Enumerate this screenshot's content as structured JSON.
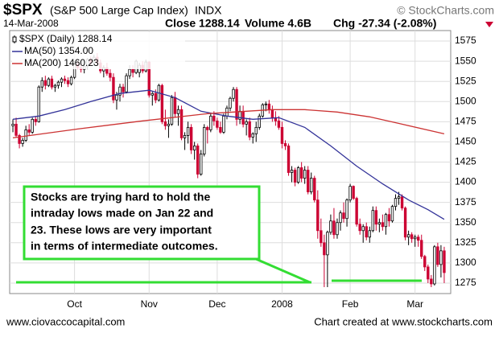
{
  "chart_data": {
    "type": "candlestick",
    "title": "$SPX",
    "subtitle": "(S&P 500 Large Cap Index)",
    "exchange": "INDX",
    "source": "© StockCharts.com",
    "date": "14-Mar-2008",
    "stats": [
      "Close 1288.14",
      "Volume 4.6B",
      "Chg -27.34 (-2.08%)"
    ],
    "price_label": "$SPX (Daily) 1288.14",
    "annotation": [
      "Stocks are trying hard to hold the",
      "intraday lows made on Jan 22 and",
      "23. These lows are very important",
      "in terms of intermediate outcomes."
    ],
    "footer_left": "www.ciovaccocapital.com",
    "footer_right": "Chart created at www.stockcharts.com",
    "up_color": "#000000",
    "down_color": "#cc0033",
    "grid": true,
    "xlim": [
      -1,
      135
    ],
    "xticks": [
      {
        "value": 19,
        "label": "Oct"
      },
      {
        "value": 42,
        "label": "Nov"
      },
      {
        "value": 63,
        "label": "Dec"
      },
      {
        "value": 83,
        "label": "2008"
      },
      {
        "value": 104,
        "label": "Feb"
      },
      {
        "value": 124,
        "label": "Mar"
      }
    ],
    "ylim": [
      1262,
      1588
    ],
    "yticks": [
      1275,
      1300,
      1325,
      1350,
      1375,
      1400,
      1425,
      1450,
      1475,
      1500,
      1525,
      1550,
      1575
    ],
    "candles": [
      [
        1470,
        1478,
        1462,
        1472
      ],
      [
        1472,
        1480,
        1455,
        1458
      ],
      [
        1458,
        1460,
        1442,
        1448
      ],
      [
        1448,
        1455,
        1444,
        1452
      ],
      [
        1452,
        1470,
        1450,
        1465
      ],
      [
        1465,
        1472,
        1458,
        1462
      ],
      [
        1462,
        1480,
        1460,
        1478
      ],
      [
        1478,
        1482,
        1470,
        1475
      ],
      [
        1475,
        1520,
        1474,
        1518
      ],
      [
        1518,
        1530,
        1512,
        1526
      ],
      [
        1526,
        1532,
        1515,
        1520
      ],
      [
        1520,
        1530,
        1518,
        1528
      ],
      [
        1528,
        1532,
        1515,
        1518
      ],
      [
        1518,
        1522,
        1512,
        1520
      ],
      [
        1520,
        1526,
        1516,
        1524
      ],
      [
        1524,
        1530,
        1518,
        1528
      ],
      [
        1528,
        1532,
        1522,
        1526
      ],
      [
        1526,
        1530,
        1518,
        1522
      ],
      [
        1522,
        1532,
        1520,
        1530
      ],
      [
        1530,
        1550,
        1528,
        1546
      ],
      [
        1546,
        1550,
        1540,
        1542
      ],
      [
        1542,
        1548,
        1536,
        1540
      ],
      [
        1540,
        1546,
        1535,
        1544
      ],
      [
        1544,
        1554,
        1540,
        1552
      ],
      [
        1552,
        1556,
        1545,
        1548
      ],
      [
        1548,
        1558,
        1545,
        1555
      ],
      [
        1555,
        1560,
        1545,
        1548
      ],
      [
        1548,
        1552,
        1535,
        1538
      ],
      [
        1538,
        1545,
        1530,
        1542
      ],
      [
        1542,
        1548,
        1532,
        1535
      ],
      [
        1535,
        1540,
        1525,
        1530
      ],
      [
        1530,
        1535,
        1498,
        1502
      ],
      [
        1502,
        1512,
        1490,
        1508
      ],
      [
        1508,
        1522,
        1500,
        1518
      ],
      [
        1518,
        1522,
        1505,
        1512
      ],
      [
        1512,
        1535,
        1510,
        1532
      ],
      [
        1532,
        1545,
        1528,
        1540
      ],
      [
        1540,
        1545,
        1530,
        1536
      ],
      [
        1536,
        1552,
        1534,
        1550
      ],
      [
        1536,
        1548,
        1530,
        1545
      ],
      [
        1545,
        1550,
        1535,
        1538
      ],
      [
        1538,
        1552,
        1536,
        1549
      ],
      [
        1549,
        1550,
        1505,
        1508
      ],
      [
        1508,
        1512,
        1495,
        1510
      ],
      [
        1510,
        1515,
        1498,
        1502
      ],
      [
        1502,
        1522,
        1500,
        1520
      ],
      [
        1520,
        1522,
        1472,
        1475
      ],
      [
        1475,
        1490,
        1465,
        1470
      ],
      [
        1470,
        1478,
        1455,
        1472
      ],
      [
        1472,
        1508,
        1470,
        1505
      ],
      [
        1505,
        1512,
        1480,
        1485
      ],
      [
        1485,
        1495,
        1470,
        1490
      ],
      [
        1490,
        1495,
        1452,
        1455
      ],
      [
        1455,
        1462,
        1440,
        1458
      ],
      [
        1458,
        1475,
        1448,
        1468
      ],
      [
        1468,
        1472,
        1435,
        1440
      ],
      [
        1440,
        1450,
        1428,
        1445
      ],
      [
        1445,
        1448,
        1405,
        1410
      ],
      [
        1410,
        1440,
        1408,
        1435
      ],
      [
        1435,
        1472,
        1432,
        1468
      ],
      [
        1468,
        1470,
        1448,
        1465
      ],
      [
        1465,
        1485,
        1462,
        1482
      ],
      [
        1482,
        1488,
        1470,
        1476
      ],
      [
        1476,
        1480,
        1465,
        1468
      ],
      [
        1468,
        1475,
        1460,
        1462
      ],
      [
        1462,
        1485,
        1460,
        1482
      ],
      [
        1482,
        1495,
        1478,
        1492
      ],
      [
        1492,
        1506,
        1488,
        1504
      ],
      [
        1504,
        1518,
        1500,
        1515
      ],
      [
        1515,
        1518,
        1470,
        1478
      ],
      [
        1478,
        1495,
        1472,
        1488
      ],
      [
        1488,
        1495,
        1468,
        1472
      ],
      [
        1472,
        1478,
        1458,
        1475
      ],
      [
        1475,
        1480,
        1452,
        1456
      ],
      [
        1456,
        1462,
        1448,
        1460
      ],
      [
        1460,
        1475,
        1450,
        1468
      ],
      [
        1468,
        1485,
        1465,
        1482
      ],
      [
        1482,
        1498,
        1480,
        1496
      ],
      [
        1496,
        1500,
        1488,
        1497
      ],
      [
        1497,
        1502,
        1485,
        1490
      ],
      [
        1490,
        1495,
        1475,
        1480
      ],
      [
        1480,
        1488,
        1470,
        1476
      ],
      [
        1476,
        1482,
        1465,
        1468
      ],
      [
        1468,
        1475,
        1442,
        1448
      ],
      [
        1448,
        1452,
        1440,
        1445
      ],
      [
        1445,
        1448,
        1408,
        1412
      ],
      [
        1412,
        1420,
        1400,
        1415
      ],
      [
        1415,
        1418,
        1395,
        1400
      ],
      [
        1400,
        1420,
        1398,
        1418
      ],
      [
        1418,
        1425,
        1400,
        1405
      ],
      [
        1405,
        1420,
        1398,
        1415
      ],
      [
        1415,
        1420,
        1385,
        1388
      ],
      [
        1388,
        1412,
        1385,
        1405
      ],
      [
        1405,
        1408,
        1375,
        1378
      ],
      [
        1378,
        1390,
        1330,
        1340
      ],
      [
        1340,
        1355,
        1320,
        1325
      ],
      [
        1325,
        1335,
        1270,
        1310
      ],
      [
        1310,
        1340,
        1270,
        1338
      ],
      [
        1338,
        1360,
        1335,
        1352
      ],
      [
        1352,
        1368,
        1330,
        1335
      ],
      [
        1335,
        1355,
        1330,
        1350
      ],
      [
        1350,
        1365,
        1340,
        1362
      ],
      [
        1362,
        1375,
        1350,
        1355
      ],
      [
        1355,
        1380,
        1345,
        1378
      ],
      [
        1378,
        1398,
        1375,
        1395
      ],
      [
        1395,
        1396,
        1378,
        1380
      ],
      [
        1380,
        1382,
        1345,
        1348
      ],
      [
        1348,
        1355,
        1335,
        1340
      ],
      [
        1340,
        1348,
        1325,
        1345
      ],
      [
        1345,
        1350,
        1328,
        1332
      ],
      [
        1332,
        1345,
        1325,
        1340
      ],
      [
        1340,
        1370,
        1338,
        1365
      ],
      [
        1365,
        1370,
        1340,
        1348
      ],
      [
        1348,
        1355,
        1338,
        1350
      ],
      [
        1350,
        1360,
        1340,
        1345
      ],
      [
        1345,
        1362,
        1335,
        1360
      ],
      [
        1360,
        1368,
        1345,
        1352
      ],
      [
        1352,
        1372,
        1350,
        1370
      ],
      [
        1370,
        1385,
        1365,
        1380
      ],
      [
        1380,
        1388,
        1372,
        1382
      ],
      [
        1382,
        1385,
        1365,
        1368
      ],
      [
        1368,
        1370,
        1328,
        1332
      ],
      [
        1332,
        1340,
        1322,
        1335
      ],
      [
        1335,
        1338,
        1325,
        1330
      ],
      [
        1330,
        1335,
        1320,
        1332
      ],
      [
        1332,
        1335,
        1320,
        1328
      ],
      [
        1328,
        1335,
        1305,
        1308
      ],
      [
        1308,
        1310,
        1290,
        1295
      ],
      [
        1295,
        1298,
        1275,
        1280
      ],
      [
        1280,
        1285,
        1270,
        1274
      ],
      [
        1274,
        1322,
        1272,
        1320
      ],
      [
        1320,
        1325,
        1295,
        1298
      ],
      [
        1298,
        1322,
        1282,
        1315
      ],
      [
        1315,
        1320,
        1275,
        1288
      ]
    ],
    "series": [
      {
        "name": "MA(50) 1354.00",
        "color": "#333399",
        "x": [
          0,
          8,
          16,
          24,
          33,
          42,
          50,
          58,
          66,
          74,
          82,
          90,
          98,
          106,
          114,
          122,
          128,
          133
        ],
        "values": [
          1478,
          1482,
          1490,
          1500,
          1510,
          1514,
          1505,
          1488,
          1482,
          1478,
          1480,
          1468,
          1445,
          1420,
          1398,
          1378,
          1366,
          1354
        ]
      },
      {
        "name": "MA(200) 1460.23",
        "color": "#cc3333",
        "x": [
          0,
          20,
          40,
          60,
          80,
          90,
          100,
          110,
          120,
          133
        ],
        "values": [
          1455,
          1466,
          1476,
          1485,
          1490,
          1490,
          1487,
          1481,
          1472,
          1460
        ]
      }
    ]
  }
}
